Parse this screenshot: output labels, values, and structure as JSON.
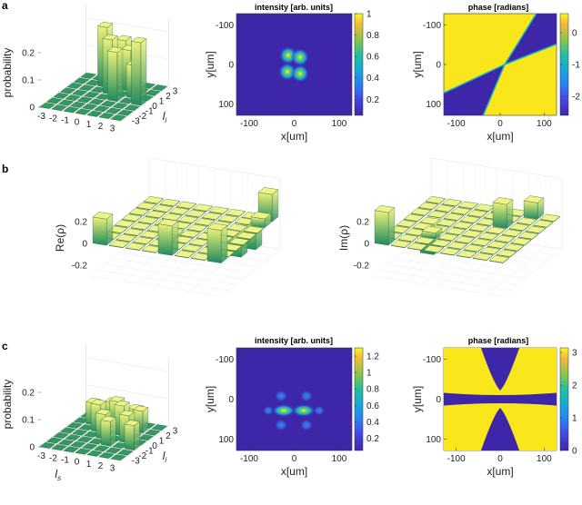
{
  "panels": {
    "a": "a",
    "b": "b",
    "c": "c"
  },
  "colors": {
    "low": "#3a24b8",
    "mid": "#19b4a8",
    "high": "#f5e51b",
    "bar_dark": "#1e8a5e",
    "bar_light": "#e9f07a"
  },
  "chart_data": [
    {
      "id": "a-hist",
      "type": "bar3d",
      "ylabel": "probability",
      "xlabel": "",
      "zlabel_right": "l_i",
      "z_ticks": [
        "0",
        "0.1",
        "0.2"
      ],
      "x_ticks": [
        "-3",
        "-2",
        "-1",
        "0",
        "1",
        "2",
        "3"
      ],
      "y_ticks": [
        "-3",
        "-2",
        "-1",
        "0",
        "1",
        "2",
        "3"
      ],
      "grid": [
        [
          0,
          0,
          0,
          0,
          0,
          0,
          0
        ],
        [
          0,
          0,
          0,
          0,
          0,
          0,
          0
        ],
        [
          0,
          0,
          0,
          0,
          0,
          0,
          0
        ],
        [
          0,
          0,
          0,
          0,
          0.18,
          0,
          0.23
        ],
        [
          0,
          0,
          0,
          0.2,
          0,
          0.12,
          0
        ],
        [
          0,
          0,
          0.22,
          0,
          0.15,
          0,
          0
        ],
        [
          0,
          0,
          0,
          0.16,
          0,
          0,
          0
        ]
      ]
    },
    {
      "id": "a-intensity",
      "type": "heatmap",
      "title": "intensity [arb. units]",
      "xlabel": "x[um]",
      "ylabel": "y[um]",
      "x_ticks": [
        "-100",
        "0",
        "100"
      ],
      "y_ticks": [
        "-100",
        "0",
        "100"
      ],
      "colorbar_ticks": [
        "0.2",
        "0.4",
        "0.6",
        "0.8",
        "1"
      ],
      "colorbar_range": [
        0.05,
        1.0
      ],
      "pattern": "four-lobe"
    },
    {
      "id": "a-phase",
      "type": "heatmap",
      "title": "phase [radians]",
      "xlabel": "x[um]",
      "ylabel": "y[um]",
      "x_ticks": [
        "-100",
        "0",
        "100"
      ],
      "y_ticks": [
        "-100",
        "0",
        "100"
      ],
      "colorbar_ticks": [
        "-2",
        "-1",
        "0"
      ],
      "colorbar_range": [
        -2.6,
        0.6
      ],
      "pattern": "cross-diagonal"
    },
    {
      "id": "b-real",
      "type": "bar3d",
      "ylabel": "Re(ρ)",
      "z_ticks": [
        "0.2",
        "0",
        "-0.2"
      ],
      "bars": [
        {
          "i": 0,
          "j": 0,
          "v": 0.24
        },
        {
          "i": 4,
          "j": 0,
          "v": 0.27
        },
        {
          "i": 7,
          "j": 0,
          "v": 0.3
        },
        {
          "i": 3,
          "j": 3,
          "v": -0.04
        },
        {
          "i": 5,
          "j": 4,
          "v": -0.05
        },
        {
          "i": 6,
          "j": 5,
          "v": -0.24
        },
        {
          "i": 7,
          "j": 6,
          "v": 0.08
        },
        {
          "i": 6,
          "j": 7,
          "v": -0.28
        },
        {
          "i": 7,
          "j": 7,
          "v": 0.25
        }
      ]
    },
    {
      "id": "b-imag",
      "type": "bar3d",
      "ylabel": "Im(ρ)",
      "z_ticks": [
        "0.2",
        "0",
        "-0.2"
      ],
      "bars": [
        {
          "i": 0,
          "j": 0,
          "v": 0.3
        },
        {
          "i": 1,
          "j": 4,
          "v": -0.28
        },
        {
          "i": 2,
          "j": 2,
          "v": 0.05
        },
        {
          "i": 5,
          "j": 5,
          "v": 0.22
        },
        {
          "i": 6,
          "j": 7,
          "v": 0.15
        }
      ]
    },
    {
      "id": "c-hist",
      "type": "bar3d",
      "ylabel": "probability",
      "xlabel": "l_s",
      "zlabel_right": "l_i",
      "z_ticks": [
        "0",
        "0.1",
        "0.2"
      ],
      "x_ticks": [
        "-3",
        "-2",
        "-1",
        "0",
        "1",
        "2",
        "3"
      ],
      "y_ticks": [
        "-3",
        "-2",
        "-1",
        "0",
        "1",
        "2",
        "3"
      ],
      "grid": [
        [
          0,
          0,
          0,
          0,
          0,
          0,
          0
        ],
        [
          0,
          0,
          0,
          0,
          0,
          0,
          0
        ],
        [
          0,
          0,
          0,
          0,
          0.09,
          0,
          0.09
        ],
        [
          0,
          0,
          0,
          0.09,
          0,
          0.1,
          0
        ],
        [
          0,
          0,
          0.1,
          0,
          0.11,
          0,
          0
        ],
        [
          0,
          0.08,
          0,
          0.1,
          0,
          0.08,
          0
        ],
        [
          0,
          0,
          0.07,
          0,
          0.06,
          0,
          0
        ]
      ]
    },
    {
      "id": "c-intensity",
      "type": "heatmap",
      "title": "intensity [arb. units]",
      "xlabel": "x[um]",
      "ylabel": "y[um]",
      "x_ticks": [
        "-100",
        "0",
        "100"
      ],
      "y_ticks": [
        "-100",
        "0",
        "100"
      ],
      "colorbar_ticks": [
        "0.2",
        "0.4",
        "0.6",
        "0.8",
        "1",
        "1.2"
      ],
      "colorbar_range": [
        0.05,
        1.3
      ],
      "pattern": "horizontal-lobes"
    },
    {
      "id": "c-phase",
      "type": "heatmap",
      "title": "phase [radians]",
      "xlabel": "x[um]",
      "ylabel": "y[um]",
      "x_ticks": [
        "-100",
        "0",
        "100"
      ],
      "y_ticks": [
        "-100",
        "0",
        "100"
      ],
      "colorbar_ticks": [
        "0",
        "1",
        "2",
        "3"
      ],
      "colorbar_range": [
        0,
        3.14
      ],
      "pattern": "hourglass"
    }
  ]
}
